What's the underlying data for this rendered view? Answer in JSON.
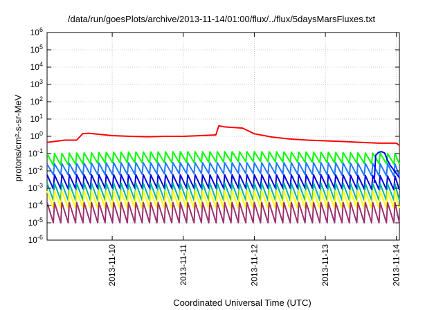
{
  "chart_data": {
    "type": "line",
    "title": "/data/run/goesPlots/archive/2013-11-14/01:00/flux/../flux/5daysMarsFluxes.txt",
    "xlabel": "Coordinated Universal Time (UTC)",
    "ylabel": "protons/cm²-s-sr-MeV",
    "x_range": [
      "2013-11-09T02:00",
      "2013-11-14T01:00"
    ],
    "x_ticks": [
      "2013-11-10",
      "2013-11-11",
      "2013-11-12",
      "2013-11-13",
      "2013-11-14"
    ],
    "y_scale": "log",
    "ylim": [
      1e-06,
      1000000.0
    ],
    "y_ticks": [
      "10^-6",
      "10^-5",
      "10^-4",
      "10^-3",
      "10^-2",
      "10^-1",
      "10^0",
      "10^1",
      "10^2",
      "10^3",
      "10^4",
      "10^5",
      "10^6"
    ],
    "grid": true,
    "legend": "none",
    "series": [
      {
        "color": "#ff0000",
        "sawtooth": false,
        "x": [
          "2013-11-09T02:00",
          "2013-11-09T08:00",
          "2013-11-09T12:00",
          "2013-11-09T14:00",
          "2013-11-09T16:00",
          "2013-11-09T20:00",
          "2013-11-10T00:00",
          "2013-11-10T06:00",
          "2013-11-10T12:00",
          "2013-11-10T18:00",
          "2013-11-11T00:00",
          "2013-11-11T06:00",
          "2013-11-11T11:00",
          "2013-11-11T12:00",
          "2013-11-11T14:00",
          "2013-11-11T20:00",
          "2013-11-12T00:00",
          "2013-11-12T06:00",
          "2013-11-12T12:00",
          "2013-11-12T18:00",
          "2013-11-13T00:00",
          "2013-11-13T06:00",
          "2013-11-13T12:00",
          "2013-11-13T18:00",
          "2013-11-14T00:00",
          "2013-11-14T01:00"
        ],
        "y": [
          0.45,
          0.6,
          0.6,
          1.4,
          1.5,
          1.3,
          1.1,
          1.0,
          0.95,
          1.0,
          1.0,
          1.1,
          1.2,
          4.0,
          3.5,
          3.0,
          1.4,
          0.9,
          0.7,
          0.6,
          0.55,
          0.5,
          0.45,
          0.4,
          0.4,
          0.3
        ]
      },
      {
        "color": "#00ff00",
        "sawtooth": true,
        "cycles": 47,
        "period_hours": 2.5,
        "x": [
          "2013-11-09T02:00",
          "2013-11-10T00:00",
          "2013-11-11T00:00",
          "2013-11-12T00:00",
          "2013-11-13T00:00",
          "2013-11-14T01:00"
        ],
        "peak": [
          0.1,
          0.12,
          0.13,
          0.13,
          0.12,
          0.1
        ],
        "trough": [
          0.02,
          0.03,
          0.03,
          0.035,
          0.03,
          0.025
        ]
      },
      {
        "color": "#1e78ff",
        "sawtooth": true,
        "cycles": 47,
        "period_hours": 2.5,
        "x": [
          "2013-11-09T02:00",
          "2013-11-10T00:00",
          "2013-11-11T00:00",
          "2013-11-12T00:00",
          "2013-11-13T00:00",
          "2013-11-14T01:00"
        ],
        "peak": [
          0.025,
          0.03,
          0.03,
          0.03,
          0.03,
          0.025
        ],
        "trough": [
          0.006,
          0.006,
          0.007,
          0.007,
          0.006,
          0.005
        ]
      },
      {
        "color": "#0000e0",
        "sawtooth": true,
        "cycles": 47,
        "period_hours": 2.5,
        "x": [
          "2013-11-09T02:00",
          "2013-11-10T00:00",
          "2013-11-11T00:00",
          "2013-11-12T00:00",
          "2013-11-13T00:00",
          "2013-11-14T01:00"
        ],
        "peak": [
          0.006,
          0.006,
          0.006,
          0.006,
          0.006,
          0.005
        ],
        "trough": [
          0.0009,
          0.001,
          0.001,
          0.001,
          0.001,
          0.0008
        ]
      },
      {
        "color": "#00b2a0",
        "sawtooth": true,
        "cycles": 47,
        "period_hours": 2.5,
        "x": [
          "2013-11-09T02:00",
          "2013-11-10T00:00",
          "2013-11-11T00:00",
          "2013-11-12T00:00",
          "2013-11-13T00:00",
          "2013-11-14T01:00"
        ],
        "peak": [
          0.002,
          0.002,
          0.002,
          0.002,
          0.002,
          0.0018
        ],
        "trough": [
          0.0002,
          0.0002,
          0.0002,
          0.0002,
          0.0002,
          0.0002
        ]
      },
      {
        "color": "#ffff00",
        "sawtooth": true,
        "cycles": 47,
        "period_hours": 2.5,
        "x": [
          "2013-11-09T02:00",
          "2013-11-10T00:00",
          "2013-11-11T00:00",
          "2013-11-12T00:00",
          "2013-11-13T00:00",
          "2013-11-14T01:00"
        ],
        "peak": [
          0.0007,
          0.0007,
          0.0007,
          0.0007,
          0.0007,
          0.0007
        ],
        "trough": [
          7e-05,
          7e-05,
          7e-05,
          7e-05,
          7e-05,
          7e-05
        ]
      },
      {
        "color": "#9b3071",
        "sawtooth": true,
        "cycles": 47,
        "period_hours": 2.5,
        "x": [
          "2013-11-09T02:00",
          "2013-11-10T00:00",
          "2013-11-11T00:00",
          "2013-11-12T00:00",
          "2013-11-13T00:00",
          "2013-11-14T01:00"
        ],
        "peak": [
          0.00015,
          0.00015,
          0.00015,
          0.00015,
          0.00015,
          0.00015
        ],
        "trough": [
          1e-05,
          1e-05,
          1e-05,
          1e-05,
          1e-05,
          1e-05
        ]
      },
      {
        "color": "#0000ff",
        "sawtooth": false,
        "x": [
          "2013-11-13T16:30",
          "2013-11-13T17:00",
          "2013-11-13T18:00",
          "2013-11-13T19:00",
          "2013-11-13T20:00",
          "2013-11-13T21:00",
          "2013-11-13T22:00",
          "2013-11-13T23:00",
          "2013-11-14T00:00",
          "2013-11-14T01:00"
        ],
        "y": [
          0.002,
          0.08,
          0.12,
          0.13,
          0.11,
          0.04,
          0.02,
          0.012,
          0.007,
          0.004
        ]
      }
    ]
  }
}
